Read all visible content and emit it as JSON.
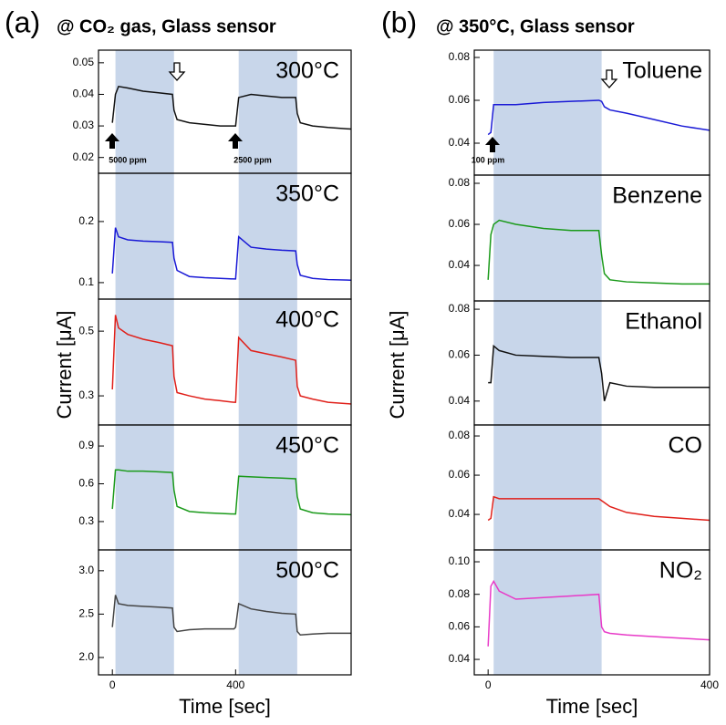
{
  "chart_data": [
    {
      "type": "line",
      "panel_label": "(a)",
      "title": "@ CO₂ gas, Glass sensor",
      "xlabel": "Time [sec]",
      "ylabel": "Current [μA]",
      "xlim": [
        -45,
        775
      ],
      "xticks": [
        0,
        400
      ],
      "gas_on": [
        [
          10,
          200
        ],
        [
          410,
          600
        ]
      ],
      "annotations": [
        "5000 ppm",
        "2500 ppm"
      ],
      "x": [
        0,
        10,
        20,
        50,
        100,
        150,
        195,
        200,
        210,
        250,
        300,
        350,
        395,
        400,
        410,
        450,
        500,
        550,
        595,
        600,
        610,
        650,
        700,
        775
      ],
      "subplots": [
        {
          "ylim": [
            0.015,
            0.054
          ],
          "yticks": [
            0.02,
            0.03,
            0.04,
            0.05
          ],
          "series": [
            {
              "name": "300°C",
              "color": "#111111",
              "values": [
                0.031,
                0.04,
                0.0425,
                0.042,
                0.041,
                0.0405,
                0.04,
                0.035,
                0.032,
                0.031,
                0.0305,
                0.03,
                0.03,
                0.03,
                0.039,
                0.04,
                0.0395,
                0.039,
                0.039,
                0.034,
                0.031,
                0.03,
                0.0295,
                0.029
              ]
            }
          ]
        },
        {
          "ylim": [
            0.073,
            0.279
          ],
          "yticks": [
            0.1,
            0.2
          ],
          "series": [
            {
              "name": "350°C",
              "color": "#1a1ad6",
              "values": [
                0.115,
                0.19,
                0.175,
                0.17,
                0.168,
                0.167,
                0.166,
                0.14,
                0.12,
                0.11,
                0.108,
                0.107,
                0.106,
                0.106,
                0.175,
                0.158,
                0.155,
                0.153,
                0.152,
                0.13,
                0.112,
                0.107,
                0.105,
                0.104
              ]
            }
          ]
        },
        {
          "ylim": [
            0.21,
            0.599
          ],
          "yticks": [
            0.3,
            0.5
          ],
          "series": [
            {
              "name": "400°C",
              "color": "#e0201a",
              "values": [
                0.32,
                0.55,
                0.51,
                0.49,
                0.475,
                0.465,
                0.455,
                0.36,
                0.31,
                0.3,
                0.29,
                0.285,
                0.28,
                0.28,
                0.48,
                0.44,
                0.43,
                0.42,
                0.41,
                0.33,
                0.3,
                0.29,
                0.28,
                0.275
              ]
            }
          ]
        },
        {
          "ylim": [
            0.075,
            1.067
          ],
          "yticks": [
            0.3,
            0.6,
            0.9
          ],
          "series": [
            {
              "name": "450°C",
              "color": "#1a9a1a",
              "values": [
                0.4,
                0.71,
                0.71,
                0.7,
                0.7,
                0.695,
                0.69,
                0.55,
                0.42,
                0.38,
                0.37,
                0.365,
                0.36,
                0.36,
                0.66,
                0.655,
                0.65,
                0.645,
                0.64,
                0.5,
                0.4,
                0.37,
                0.36,
                0.355
              ]
            }
          ]
        },
        {
          "ylim": [
            1.8,
            3.24
          ],
          "yticks": [
            {
              "value": 2,
              "label": "2.0"
            },
            2.5,
            {
              "value": 3,
              "label": "3.0"
            }
          ],
          "series": [
            {
              "name": "500°C",
              "color": "#444444",
              "values": [
                2.35,
                2.72,
                2.62,
                2.6,
                2.59,
                2.58,
                2.57,
                2.35,
                2.3,
                2.32,
                2.33,
                2.33,
                2.33,
                2.35,
                2.62,
                2.56,
                2.53,
                2.51,
                2.5,
                2.3,
                2.26,
                2.27,
                2.28,
                2.28
              ]
            }
          ]
        }
      ]
    },
    {
      "type": "line",
      "panel_label": "(b)",
      "title": "@ 350°C, Glass sensor",
      "xlabel": "Time [sec]",
      "ylabel": "Current [μA]",
      "xlim": [
        -25,
        400
      ],
      "xticks": [
        0,
        400
      ],
      "gas_on": [
        [
          10,
          205
        ]
      ],
      "annotations": [
        "100 ppm"
      ],
      "x": [
        0,
        5,
        10,
        20,
        50,
        100,
        150,
        200,
        205,
        210,
        220,
        250,
        300,
        350,
        400
      ],
      "subplots": [
        {
          "ylim": [
            0.0251,
            0.0834
          ],
          "yticks": [
            0.04,
            0.06,
            0.08
          ],
          "series": [
            {
              "name": "Toluene",
              "color": "#1a1ad6",
              "values": [
                0.044,
                0.045,
                0.058,
                0.058,
                0.058,
                0.059,
                0.0595,
                0.06,
                0.0595,
                0.057,
                0.0555,
                0.054,
                0.051,
                0.048,
                0.046
              ]
            }
          ]
        },
        {
          "ylim": [
            0.0227,
            0.084
          ],
          "yticks": [
            0.04,
            0.06,
            0.08
          ],
          "series": [
            {
              "name": "Benzene",
              "color": "#1a9a1a",
              "values": [
                0.033,
                0.055,
                0.06,
                0.062,
                0.06,
                0.058,
                0.057,
                0.057,
                0.045,
                0.036,
                0.033,
                0.032,
                0.0315,
                0.031,
                0.031
              ]
            }
          ]
        },
        {
          "ylim": [
            0.0296,
            0.0836
          ],
          "yticks": [
            0.04,
            0.06,
            0.08
          ],
          "series": [
            {
              "name": "Ethanol",
              "color": "#111111",
              "values": [
                0.048,
                0.048,
                0.064,
                0.062,
                0.06,
                0.0595,
                0.059,
                0.059,
                0.052,
                0.04,
                0.048,
                0.0465,
                0.046,
                0.046,
                0.046
              ]
            }
          ]
        },
        {
          "ylim": [
            0.0219,
            0.0856
          ],
          "yticks": [
            0.04,
            0.06,
            0.08
          ],
          "series": [
            {
              "name": "CO",
              "color": "#e0201a",
              "values": [
                0.037,
                0.038,
                0.049,
                0.048,
                0.048,
                0.048,
                0.048,
                0.048,
                0.047,
                0.046,
                0.044,
                0.041,
                0.039,
                0.038,
                0.037
              ]
            }
          ]
        },
        {
          "ylim": [
            0.0305,
            0.1073
          ],
          "yticks": [
            0.04,
            0.06,
            0.08,
            {
              "value": 0.1,
              "label": "0.10"
            }
          ],
          "series": [
            {
              "name": "NO₂",
              "color": "#e83ac8",
              "values": [
                0.048,
                0.085,
                0.088,
                0.082,
                0.077,
                0.078,
                0.079,
                0.08,
                0.06,
                0.057,
                0.056,
                0.055,
                0.054,
                0.053,
                0.052
              ]
            }
          ]
        }
      ]
    }
  ]
}
